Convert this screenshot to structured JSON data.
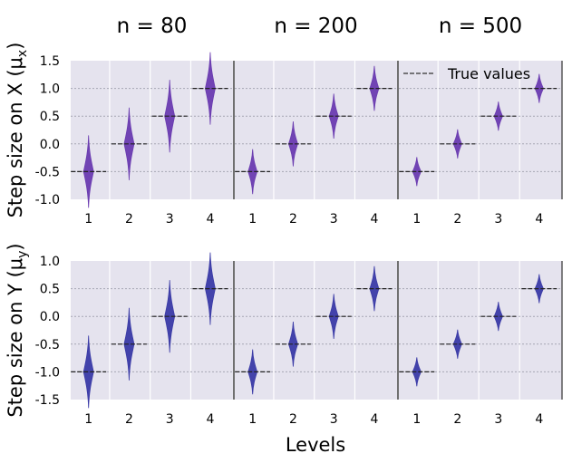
{
  "chart_data": {
    "type": "violin",
    "xlabel": "Levels",
    "columns": [
      {
        "title": "n = 80",
        "spread": 1.0
      },
      {
        "title": "n = 200",
        "spread": 0.62
      },
      {
        "title": "n = 500",
        "spread": 0.4
      }
    ],
    "categories": [
      "1",
      "2",
      "3",
      "4"
    ],
    "legend": {
      "label": "True values",
      "position": "top-right"
    },
    "rows": [
      {
        "ylabel": "Step size on X (μ",
        "ylabel_sub": "x",
        "ylabel_close": ")",
        "ylim": [
          -1.0,
          1.5
        ],
        "yticks": [
          "1.5",
          "1.0",
          "0.5",
          "0.0",
          "-0.5",
          "-1.0"
        ],
        "ytick_values": [
          1.5,
          1.0,
          0.5,
          0.0,
          -0.5,
          -1.0
        ],
        "true_values": [
          -0.5,
          0.0,
          0.5,
          1.0
        ],
        "color": "#6a3bb0"
      },
      {
        "ylabel": "Step size on Y (μ",
        "ylabel_sub": "y",
        "ylabel_close": ")",
        "ylim": [
          -1.5,
          1.0
        ],
        "yticks": [
          "1.0",
          "0.5",
          "0.0",
          "-0.5",
          "-1.0",
          "-1.5"
        ],
        "ytick_values": [
          1.0,
          0.5,
          0.0,
          -0.5,
          -1.0,
          -1.5
        ],
        "true_values": [
          -1.0,
          -0.5,
          0.0,
          0.5
        ],
        "color": "#3a3aa6"
      }
    ],
    "grid": true,
    "background": "#e5e3ee"
  }
}
